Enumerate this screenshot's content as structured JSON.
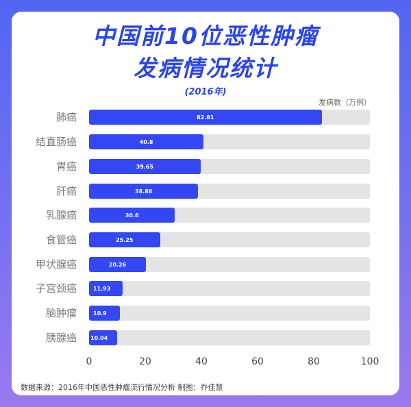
{
  "title_line1": "中国前10位恶性肿瘤",
  "title_line2": "发病情况统计",
  "subtitle": "(2016年)",
  "unit_label": "发病数（万例）",
  "source_text": "数据来源：2016年中国恶性肿瘤流行情况分析   制图：乔佳慧",
  "colors": {
    "bar": "#3347f5",
    "track": "#e4e4e4",
    "title": "#2a45ea",
    "bg_top": "#5266f3",
    "bg_bottom": "#9b79ef"
  },
  "x_ticks": [
    "0",
    "20",
    "40",
    "60",
    "80",
    "100"
  ],
  "rows": [
    {
      "label": "肺癌",
      "value": "82.81"
    },
    {
      "label": "结直肠癌",
      "value": "40.8"
    },
    {
      "label": "胃癌",
      "value": "39.65"
    },
    {
      "label": "肝癌",
      "value": "38.88"
    },
    {
      "label": "乳腺癌",
      "value": "30.6"
    },
    {
      "label": "食管癌",
      "value": "25.25"
    },
    {
      "label": "甲状腺癌",
      "value": "20.26"
    },
    {
      "label": "子宫颈癌",
      "value": "11.93"
    },
    {
      "label": "脑肿瘤",
      "value": "10.9"
    },
    {
      "label": "胰腺癌",
      "value": "10.04"
    }
  ],
  "chart_data": {
    "type": "bar",
    "orientation": "horizontal",
    "title": "中国前10位恶性肿瘤发病情况统计",
    "subtitle": "(2016年)",
    "categories": [
      "肺癌",
      "结直肠癌",
      "胃癌",
      "肝癌",
      "乳腺癌",
      "食管癌",
      "甲状腺癌",
      "子宫颈癌",
      "脑肿瘤",
      "胰腺癌"
    ],
    "values": [
      82.81,
      40.8,
      39.65,
      38.88,
      30.6,
      25.25,
      20.26,
      11.93,
      10.9,
      10.04
    ],
    "xlabel": "发病数（万例）",
    "ylabel": "",
    "xlim": [
      0,
      100
    ],
    "x_ticks": [
      0,
      20,
      40,
      60,
      80,
      100
    ],
    "grid": false,
    "data_labels": true,
    "source": "数据来源：2016年中国恶性肿瘤流行情况分析   制图：乔佳慧"
  }
}
